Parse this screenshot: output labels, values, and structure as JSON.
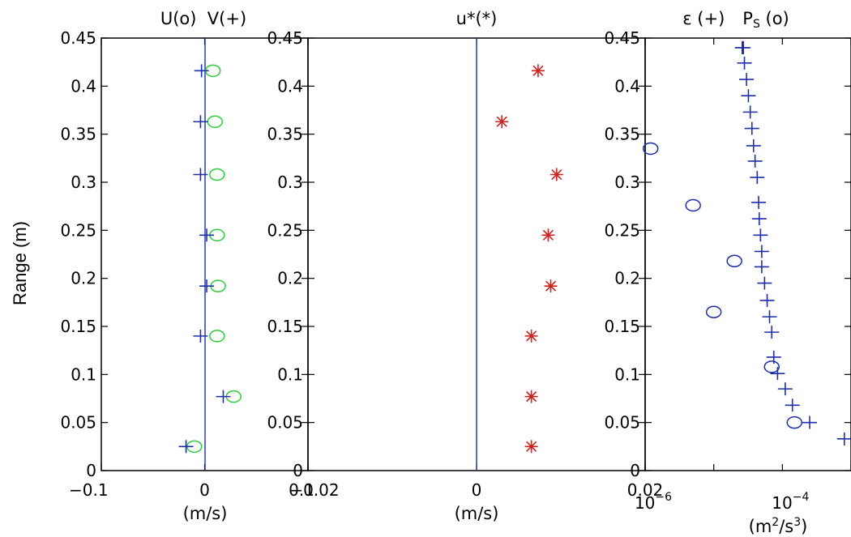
{
  "ylabel": "Range (m)",
  "yticks": [
    "0",
    "0.05",
    "0.1",
    "0.15",
    "0.2",
    "0.25",
    "0.3",
    "0.35",
    "0.4",
    "0.45"
  ],
  "colors": {
    "marker_blue": "#1f2fa8",
    "marker_green": "#2ecc40",
    "marker_red": "#d02020",
    "zero_line": "#1f2fa8",
    "axes": "#000000"
  },
  "panels": [
    {
      "title": "U(o)  V(+)",
      "xunit": "(m/s)",
      "xticks": [
        "−0.1",
        "0",
        "0.1"
      ]
    },
    {
      "title": "u*(*)",
      "xunit": "(m/s)",
      "xticks": [
        "−0.02",
        "0",
        "0.02"
      ]
    },
    {
      "title_a": "ε (+)",
      "title_b": "P",
      "title_b_sub": "S",
      "title_b_tail": " (o)",
      "xunit_base": "(m",
      "xunit_sup1": "2",
      "xunit_mid": "/s",
      "xunit_sup2": "3",
      "xunit_end": ")",
      "xtick_base": "10",
      "xtick_exps": [
        "−6",
        "−4"
      ]
    }
  ],
  "chart_data": [
    {
      "type": "scatter",
      "title": "U(o)  V(+)",
      "xlabel": "(m/s)",
      "ylabel": "Range (m)",
      "xlim": [
        -0.1,
        0.1
      ],
      "ylim": [
        0,
        0.45
      ],
      "series": [
        {
          "name": "U",
          "marker": "o",
          "color": "#2ecc40",
          "x": [
            -0.01,
            0.028,
            0.012,
            0.013,
            0.012,
            0.012,
            0.01,
            0.008
          ],
          "y": [
            0.025,
            0.077,
            0.14,
            0.192,
            0.245,
            0.308,
            0.363,
            0.416
          ]
        },
        {
          "name": "V",
          "marker": "+",
          "color": "#1f2fa8",
          "x": [
            -0.018,
            0.018,
            -0.004,
            0.002,
            0.002,
            -0.004,
            -0.004,
            -0.003
          ],
          "y": [
            0.025,
            0.077,
            0.14,
            0.192,
            0.245,
            0.308,
            0.363,
            0.416
          ]
        }
      ]
    },
    {
      "type": "scatter",
      "title": "u*(*)",
      "xlabel": "(m/s)",
      "xlim": [
        -0.02,
        0.02
      ],
      "ylim": [
        0,
        0.45
      ],
      "series": [
        {
          "name": "u*",
          "marker": "*",
          "color": "#d02020",
          "x": [
            0.0065,
            0.0065,
            0.0065,
            0.0088,
            0.0085,
            0.0095,
            0.003,
            0.0073
          ],
          "y": [
            0.025,
            0.077,
            0.14,
            0.192,
            0.245,
            0.308,
            0.363,
            0.416
          ]
        }
      ]
    },
    {
      "type": "scatter",
      "title": "ε (+)   P_S (o)",
      "xlabel": "(m^2/s^3)",
      "xscale": "log",
      "xlim": [
        1e-06,
        0.001
      ],
      "ylim": [
        0,
        0.45
      ],
      "series": [
        {
          "name": "ε",
          "marker": "+",
          "color": "#1f2fa8",
          "x": [
            0.0012,
            0.0008,
            0.00025,
            0.00014,
            0.00011,
            8.5e-05,
            7.5e-05,
            7e-05,
            6.5e-05,
            6e-05,
            5.5e-05,
            5e-05,
            5e-05,
            4.8e-05,
            4.6e-05,
            4.5e-05,
            4.3e-05,
            4e-05,
            3.8e-05,
            3.6e-05,
            3.4e-05,
            3.2e-05,
            3e-05,
            2.8e-05,
            2.7e-05,
            2.6e-05,
            2.6e-05
          ],
          "y": [
            0.016,
            0.033,
            0.05,
            0.068,
            0.085,
            0.101,
            0.118,
            0.144,
            0.16,
            0.177,
            0.195,
            0.212,
            0.228,
            0.245,
            0.262,
            0.279,
            0.305,
            0.322,
            0.338,
            0.356,
            0.373,
            0.39,
            0.407,
            0.424,
            0.44,
            0.44,
            0.44
          ]
        },
        {
          "name": "P_S",
          "marker": "o",
          "color": "#1f2fa8",
          "x": [
            0.00015,
            7e-05,
            1e-05,
            2e-05,
            5e-06,
            1.2e-06
          ],
          "y": [
            0.05,
            0.108,
            0.165,
            0.218,
            0.276,
            0.335
          ]
        }
      ]
    }
  ]
}
